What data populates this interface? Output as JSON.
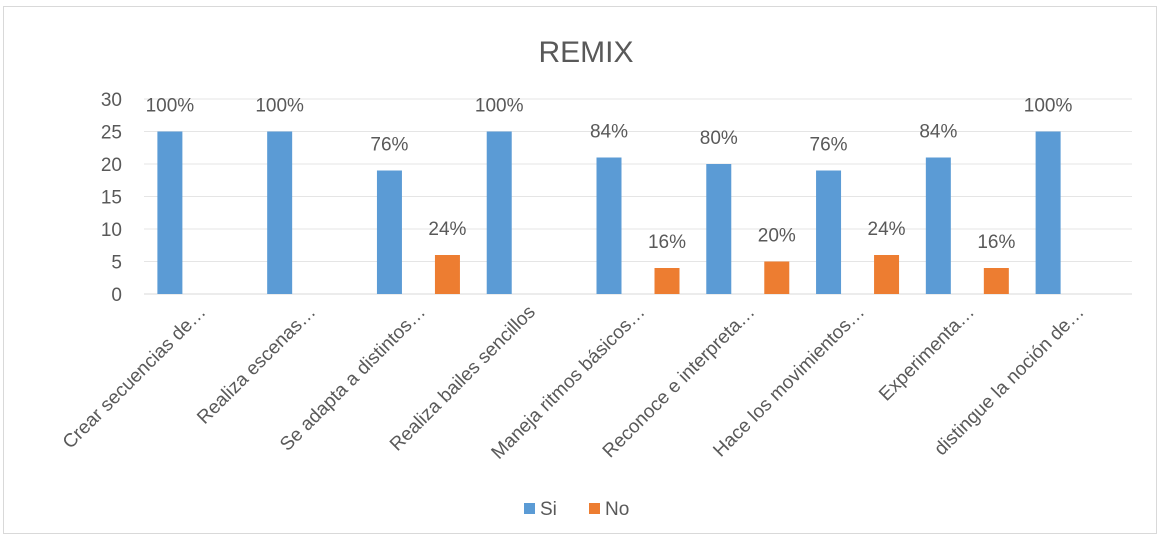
{
  "chart_data": {
    "type": "bar",
    "title": "REMIX",
    "categories": [
      "Crear secuencias de…",
      "Realiza escenas…",
      "Se adapta a distintos…",
      "Realiza bailes sencillos",
      "Maneja ritmos básicos…",
      "Reconoce e interpreta…",
      "Hace los movimientos…",
      "Experimenta…",
      "distingue la noción de…"
    ],
    "series": [
      {
        "name": "Si",
        "color": "#5b9bd5",
        "values": [
          25,
          25,
          19,
          25,
          21,
          20,
          19,
          21,
          25
        ],
        "labels": [
          "100%",
          "100%",
          "76%",
          "100%",
          "84%",
          "80%",
          "76%",
          "84%",
          "100%"
        ]
      },
      {
        "name": "No",
        "color": "#ed7d31",
        "values": [
          0,
          0,
          6,
          0,
          4,
          5,
          6,
          4,
          0
        ],
        "labels": [
          "",
          "",
          "24%",
          "",
          "16%",
          "20%",
          "24%",
          "16%",
          ""
        ]
      }
    ],
    "ylim": [
      0,
      30
    ],
    "yticks": [
      0,
      5,
      10,
      15,
      20,
      25,
      30
    ],
    "grid": true,
    "legend": "bottom"
  }
}
